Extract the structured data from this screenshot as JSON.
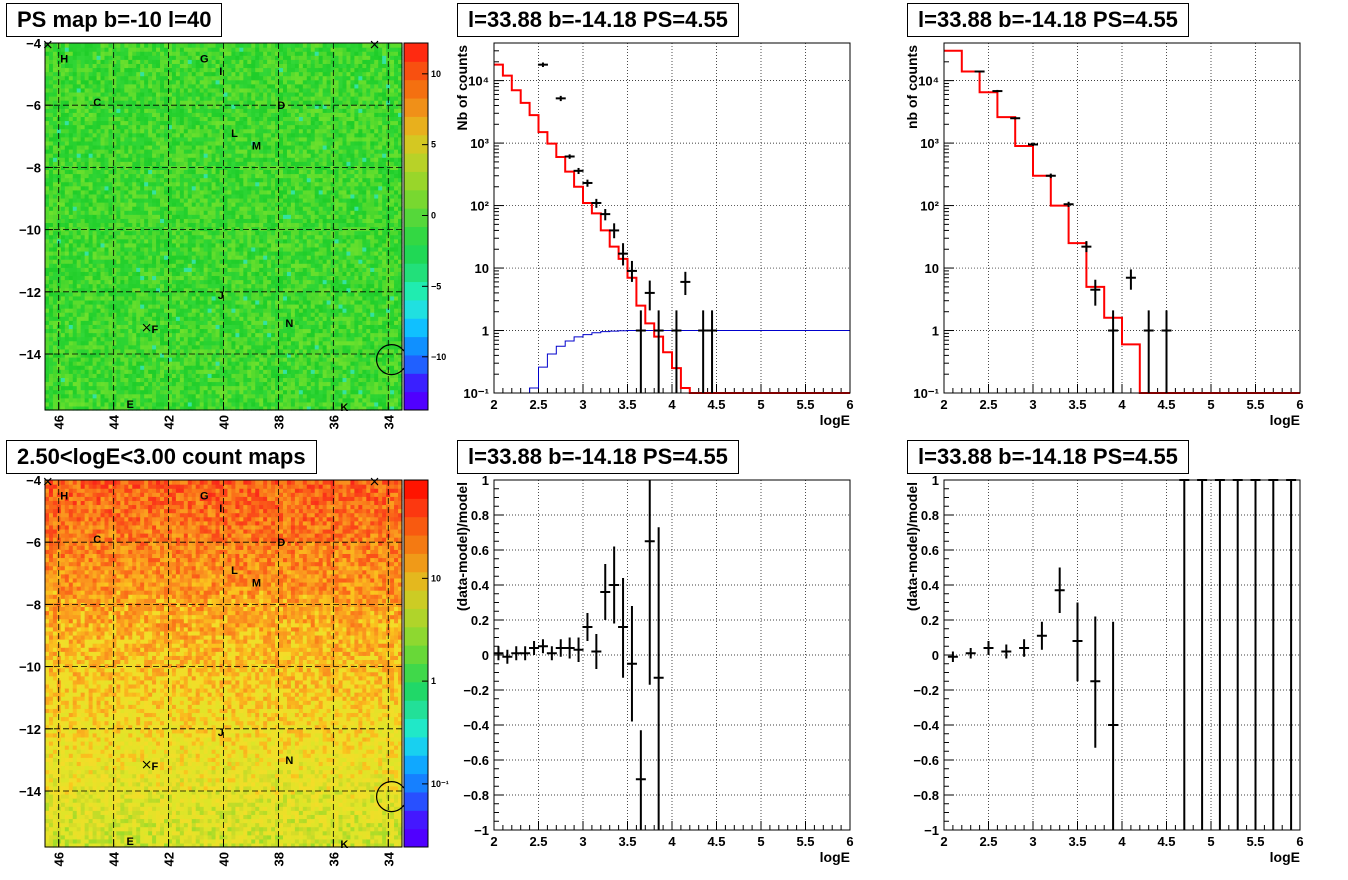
{
  "titles": {
    "map_top": "PS map b=-10 l=40",
    "map_bottom": "2.50<logE<3.00 count maps",
    "spec_a": "l=33.88 b=-14.18 PS=4.55",
    "spec_b": "l=33.88 b=-14.18 PS=4.55",
    "res_a": "l=33.88 b=-14.18 PS=4.55",
    "res_b": "l=33.88 b=-14.18 PS=4.55"
  },
  "chart_data": [
    {
      "id": "map_top",
      "type": "heatmap",
      "title": "PS map b=-10 l=40",
      "xlim": [
        46.5,
        33.5
      ],
      "ylim": [
        -15.8,
        -4
      ],
      "xticks": [
        "46",
        "44",
        "42",
        "40",
        "38",
        "36",
        "34"
      ],
      "yticks": [
        "-4",
        "-6",
        "-8",
        "-10",
        "-12",
        "-14"
      ],
      "colorbar_ticks": [
        "10",
        "5",
        "0",
        "-5",
        "-10"
      ],
      "colorbar_range": [
        -12,
        12
      ],
      "colors": {
        "palette_low": "#5000ff",
        "palette_high": "#ff1400"
      },
      "sources": [
        {
          "label": "H",
          "l": 45.8,
          "b": -4.5
        },
        {
          "label": "G",
          "l": 40.7,
          "b": -4.5
        },
        {
          "label": "I",
          "l": 40.1,
          "b": -4.9
        },
        {
          "label": "C",
          "l": 44.6,
          "b": -5.9
        },
        {
          "label": "D",
          "l": 37.9,
          "b": -6.0
        },
        {
          "label": "L",
          "l": 39.6,
          "b": -6.9
        },
        {
          "label": "M",
          "l": 38.8,
          "b": -7.3
        },
        {
          "label": "J",
          "l": 40.1,
          "b": -12.1
        },
        {
          "label": "N",
          "l": 37.6,
          "b": -13.0
        },
        {
          "label": "F",
          "l": 42.5,
          "b": -13.2
        },
        {
          "label": "E",
          "l": 43.4,
          "b": -15.6
        },
        {
          "label": "K",
          "l": 35.6,
          "b": -15.7
        }
      ]
    },
    {
      "id": "map_bottom",
      "type": "heatmap",
      "title": "2.50<logE<3.00 count maps",
      "xlim": [
        46.5,
        33.5
      ],
      "ylim": [
        -15.8,
        -4
      ],
      "xticks": [
        "46",
        "44",
        "42",
        "40",
        "38",
        "36",
        "34"
      ],
      "yticks": [
        "-4",
        "-6",
        "-8",
        "-10",
        "-12",
        "-14"
      ],
      "colorbar_ticks": [
        "10",
        "1",
        "10⁻¹"
      ],
      "colorbar_log": true,
      "sources": [
        {
          "label": "H",
          "l": 45.8,
          "b": -4.5
        },
        {
          "label": "G",
          "l": 40.7,
          "b": -4.5
        },
        {
          "label": "I",
          "l": 40.1,
          "b": -4.9
        },
        {
          "label": "C",
          "l": 44.6,
          "b": -5.9
        },
        {
          "label": "D",
          "l": 37.9,
          "b": -6.0
        },
        {
          "label": "L",
          "l": 39.6,
          "b": -6.9
        },
        {
          "label": "M",
          "l": 38.8,
          "b": -7.3
        },
        {
          "label": "J",
          "l": 40.1,
          "b": -12.1
        },
        {
          "label": "N",
          "l": 37.6,
          "b": -13.0
        },
        {
          "label": "F",
          "l": 42.5,
          "b": -13.2
        },
        {
          "label": "E",
          "l": 43.4,
          "b": -15.6
        },
        {
          "label": "K",
          "l": 35.6,
          "b": -15.7
        }
      ]
    },
    {
      "id": "spec_a",
      "type": "line",
      "title": "l=33.88 b=-14.18 PS=4.55",
      "xlabel": "logE",
      "ylabel": "Nb of counts",
      "xlim": [
        2,
        6
      ],
      "ylim": [
        0.1,
        40000
      ],
      "log_y": true,
      "xticks": [
        "2",
        "2.5",
        "3",
        "3.5",
        "4",
        "4.5",
        "5",
        "5.5",
        "6"
      ],
      "yticks": [
        {
          "v": 0.1,
          "t": "10⁻¹"
        },
        {
          "v": 1,
          "t": "1"
        },
        {
          "v": 10,
          "t": "10"
        },
        {
          "v": 100,
          "t": "10²"
        },
        {
          "v": 1000,
          "t": "10³"
        },
        {
          "v": 10000,
          "t": "10⁴"
        }
      ],
      "grid": true,
      "model_step": {
        "edges": [
          2.0,
          2.1,
          2.2,
          2.3,
          2.4,
          2.5,
          2.6,
          2.7,
          2.8,
          2.9,
          3.0,
          3.1,
          3.2,
          3.3,
          3.4,
          3.5,
          3.6,
          3.7,
          3.8,
          3.9,
          4.0,
          4.1,
          4.2,
          6.0
        ],
        "values": [
          18000,
          12000,
          7000,
          4400,
          2800,
          1500,
          980,
          600,
          350,
          200,
          110,
          75,
          40,
          22,
          14,
          7,
          2.5,
          1.3,
          0.8,
          0.45,
          0.25,
          0.12,
          0.1
        ]
      },
      "background_step": {
        "edges": [
          2.0,
          2.1,
          2.2,
          2.3,
          2.4,
          2.5,
          2.6,
          2.7,
          2.8,
          2.9,
          3.0,
          3.1,
          3.2,
          3.3,
          3.4,
          3.5,
          6.0
        ],
        "values": [
          0.1,
          0.1,
          0.1,
          0.1,
          0.12,
          0.26,
          0.42,
          0.56,
          0.68,
          0.79,
          0.86,
          0.92,
          0.96,
          0.98,
          0.99,
          1,
          1
        ]
      },
      "points": [
        {
          "x": 2.55,
          "y": 18000,
          "lo": 16500,
          "hi": 19500
        },
        {
          "x": 2.75,
          "y": 5200,
          "lo": 4700,
          "hi": 5700
        },
        {
          "x": 2.85,
          "y": 610,
          "lo": 560,
          "hi": 660
        },
        {
          "x": 2.95,
          "y": 360,
          "lo": 320,
          "hi": 400
        },
        {
          "x": 3.05,
          "y": 230,
          "lo": 200,
          "hi": 260
        },
        {
          "x": 3.15,
          "y": 110,
          "lo": 92,
          "hi": 128
        },
        {
          "x": 3.25,
          "y": 73,
          "lo": 58,
          "hi": 88
        },
        {
          "x": 3.35,
          "y": 40,
          "lo": 30,
          "hi": 52
        },
        {
          "x": 3.45,
          "y": 17,
          "lo": 11,
          "hi": 25
        },
        {
          "x": 3.55,
          "y": 9,
          "lo": 6,
          "hi": 13
        },
        {
          "x": 3.65,
          "y": 1,
          "lo": 0.1,
          "hi": 2.1
        },
        {
          "x": 3.75,
          "y": 4,
          "lo": 2.1,
          "hi": 6.3
        },
        {
          "x": 3.85,
          "y": 1,
          "lo": 0.1,
          "hi": 2.1
        },
        {
          "x": 4.05,
          "y": 1,
          "lo": 0.1,
          "hi": 2.1
        },
        {
          "x": 4.15,
          "y": 6,
          "lo": 3.7,
          "hi": 8.7
        },
        {
          "x": 4.35,
          "y": 1,
          "lo": 0.1,
          "hi": 2.1
        },
        {
          "x": 4.45,
          "y": 1,
          "lo": 0.1,
          "hi": 2.1
        }
      ],
      "colors": {
        "model": "#ff0000",
        "background": "#0000cc",
        "data": "#000000"
      }
    },
    {
      "id": "spec_b",
      "type": "line",
      "title": "l=33.88 b=-14.18 PS=4.55",
      "xlabel": "logE",
      "ylabel": "nb of counts",
      "xlim": [
        2,
        6
      ],
      "ylim": [
        0.1,
        40000
      ],
      "log_y": true,
      "xticks": [
        "2",
        "2.5",
        "3",
        "3.5",
        "4",
        "4.5",
        "5",
        "5.5",
        "6"
      ],
      "yticks": [
        {
          "v": 0.1,
          "t": "10⁻¹"
        },
        {
          "v": 1,
          "t": "1"
        },
        {
          "v": 10,
          "t": "10"
        },
        {
          "v": 100,
          "t": "10²"
        },
        {
          "v": 1000,
          "t": "10³"
        },
        {
          "v": 10000,
          "t": "10⁴"
        }
      ],
      "grid": true,
      "model_step": {
        "edges": [
          2.0,
          2.2,
          2.4,
          2.6,
          2.8,
          3.0,
          3.2,
          3.4,
          3.6,
          3.8,
          4.0,
          4.2,
          6.0
        ],
        "values": [
          30000,
          14000,
          6500,
          2600,
          900,
          300,
          100,
          25,
          5,
          1.6,
          0.6,
          0.1
        ]
      },
      "points": [
        {
          "x": 2.4,
          "y": 14000,
          "lo": 13500,
          "hi": 14500
        },
        {
          "x": 2.6,
          "y": 6800,
          "lo": 6500,
          "hi": 7100
        },
        {
          "x": 2.8,
          "y": 2500,
          "lo": 2400,
          "hi": 2600
        },
        {
          "x": 3.0,
          "y": 950,
          "lo": 900,
          "hi": 1000
        },
        {
          "x": 3.2,
          "y": 300,
          "lo": 275,
          "hi": 325
        },
        {
          "x": 3.4,
          "y": 105,
          "lo": 95,
          "hi": 115
        },
        {
          "x": 3.6,
          "y": 22,
          "lo": 18,
          "hi": 27
        },
        {
          "x": 3.7,
          "y": 4.5,
          "lo": 2.5,
          "hi": 6.5
        },
        {
          "x": 3.9,
          "y": 1,
          "lo": 0.1,
          "hi": 2.1
        },
        {
          "x": 4.1,
          "y": 7,
          "lo": 4.5,
          "hi": 9.5
        },
        {
          "x": 4.3,
          "y": 1,
          "lo": 0.1,
          "hi": 2.1
        },
        {
          "x": 4.5,
          "y": 1,
          "lo": 0.1,
          "hi": 2.1
        }
      ],
      "colors": {
        "model": "#ff0000",
        "data": "#000000"
      }
    },
    {
      "id": "res_a",
      "type": "scatter",
      "title": "l=33.88 b=-14.18 PS=4.55",
      "xlabel": "logE",
      "ylabel": "(data-model)/model",
      "xlim": [
        2,
        6
      ],
      "ylim": [
        -1,
        1
      ],
      "xticks": [
        "2",
        "2.5",
        "3",
        "3.5",
        "4",
        "4.5",
        "5",
        "5.5",
        "6"
      ],
      "yticks": [
        "1",
        "0.8",
        "0.6",
        "0.4",
        "0.2",
        "0",
        "-0.2",
        "-0.4",
        "-0.6",
        "-0.8",
        "-1"
      ],
      "grid": true,
      "points": [
        {
          "x": 2.05,
          "y": 0.01,
          "lo": -0.03,
          "hi": 0.05
        },
        {
          "x": 2.15,
          "y": -0.01,
          "lo": -0.05,
          "hi": 0.03
        },
        {
          "x": 2.25,
          "y": 0.01,
          "lo": -0.03,
          "hi": 0.05
        },
        {
          "x": 2.35,
          "y": 0.01,
          "lo": -0.03,
          "hi": 0.05
        },
        {
          "x": 2.45,
          "y": 0.04,
          "lo": 0.0,
          "hi": 0.08
        },
        {
          "x": 2.55,
          "y": 0.05,
          "lo": 0.01,
          "hi": 0.09
        },
        {
          "x": 2.65,
          "y": 0.01,
          "lo": -0.03,
          "hi": 0.05
        },
        {
          "x": 2.75,
          "y": 0.04,
          "lo": -0.01,
          "hi": 0.09
        },
        {
          "x": 2.85,
          "y": 0.04,
          "lo": -0.02,
          "hi": 0.1
        },
        {
          "x": 2.95,
          "y": 0.03,
          "lo": -0.04,
          "hi": 0.1
        },
        {
          "x": 3.05,
          "y": 0.16,
          "lo": 0.08,
          "hi": 0.24
        },
        {
          "x": 3.15,
          "y": 0.02,
          "lo": -0.08,
          "hi": 0.12
        },
        {
          "x": 3.25,
          "y": 0.36,
          "lo": 0.2,
          "hi": 0.52
        },
        {
          "x": 3.35,
          "y": 0.4,
          "lo": 0.18,
          "hi": 0.62
        },
        {
          "x": 3.45,
          "y": 0.16,
          "lo": -0.13,
          "hi": 0.44
        },
        {
          "x": 3.55,
          "y": -0.05,
          "lo": -0.38,
          "hi": 0.28
        },
        {
          "x": 3.65,
          "y": -0.71,
          "lo": -1.0,
          "hi": -0.43
        },
        {
          "x": 3.75,
          "y": 0.65,
          "lo": -0.17,
          "hi": 1.0
        },
        {
          "x": 3.85,
          "y": -0.13,
          "lo": -1.0,
          "hi": 0.73
        }
      ],
      "colors": {
        "data": "#000000"
      }
    },
    {
      "id": "res_b",
      "type": "scatter",
      "title": "l=33.88 b=-14.18 PS=4.55",
      "xlabel": "logE",
      "ylabel": "(data-model)/model",
      "xlim": [
        2,
        6
      ],
      "ylim": [
        -1,
        1
      ],
      "xticks": [
        "2",
        "2.5",
        "3",
        "3.5",
        "4",
        "4.5",
        "5",
        "5.5",
        "6"
      ],
      "yticks": [
        "1",
        "0.8",
        "0.6",
        "0.4",
        "0.2",
        "0",
        "-0.2",
        "-0.4",
        "-0.6",
        "-0.8",
        "-1"
      ],
      "grid": true,
      "points": [
        {
          "x": 2.1,
          "y": -0.01,
          "lo": -0.04,
          "hi": 0.02
        },
        {
          "x": 2.3,
          "y": 0.01,
          "lo": -0.02,
          "hi": 0.04
        },
        {
          "x": 2.5,
          "y": 0.04,
          "lo": 0.0,
          "hi": 0.08
        },
        {
          "x": 2.7,
          "y": 0.02,
          "lo": -0.02,
          "hi": 0.06
        },
        {
          "x": 2.9,
          "y": 0.04,
          "lo": -0.01,
          "hi": 0.09
        },
        {
          "x": 3.1,
          "y": 0.11,
          "lo": 0.03,
          "hi": 0.19
        },
        {
          "x": 3.3,
          "y": 0.37,
          "lo": 0.24,
          "hi": 0.5
        },
        {
          "x": 3.5,
          "y": 0.08,
          "lo": -0.15,
          "hi": 0.3
        },
        {
          "x": 3.7,
          "y": -0.15,
          "lo": -0.53,
          "hi": 0.22
        },
        {
          "x": 3.9,
          "y": -0.4,
          "lo": -1.0,
          "hi": 0.19
        },
        {
          "x": 4.7,
          "y": 1.0,
          "lo": -1.0,
          "hi": 1.0
        },
        {
          "x": 4.9,
          "y": 1.0,
          "lo": -1.0,
          "hi": 1.0
        },
        {
          "x": 5.1,
          "y": 1.0,
          "lo": -1.0,
          "hi": 1.0
        },
        {
          "x": 5.3,
          "y": 1.0,
          "lo": -1.0,
          "hi": 1.0
        },
        {
          "x": 5.5,
          "y": 1.0,
          "lo": -1.0,
          "hi": 1.0
        },
        {
          "x": 5.7,
          "y": 1.0,
          "lo": -1.0,
          "hi": 1.0
        },
        {
          "x": 5.9,
          "y": 1.0,
          "lo": -1.0,
          "hi": 1.0
        }
      ],
      "colors": {
        "data": "#000000"
      }
    }
  ]
}
